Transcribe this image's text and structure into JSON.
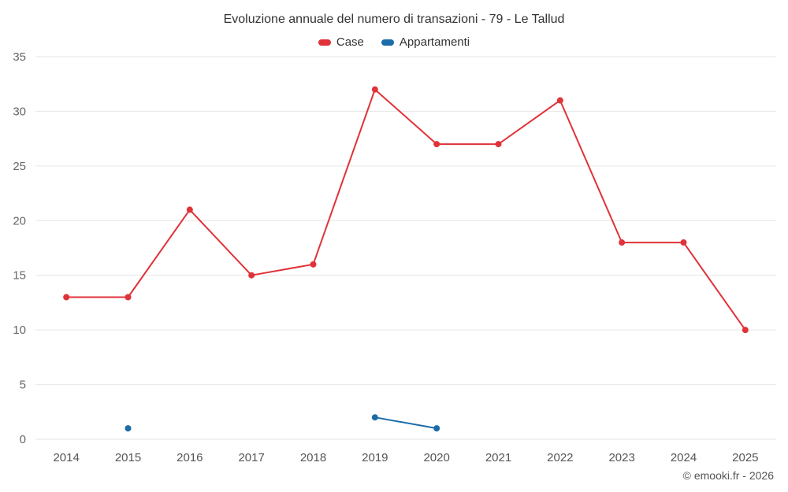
{
  "chart_data": {
    "type": "line",
    "title": "Evoluzione annuale del numero di transazioni - 79 - Le Tallud",
    "categories": [
      "2014",
      "2015",
      "2016",
      "2017",
      "2018",
      "2019",
      "2020",
      "2021",
      "2022",
      "2023",
      "2024",
      "2025"
    ],
    "series": [
      {
        "name": "Case",
        "color": "#e03238",
        "values": [
          13,
          13,
          21,
          15,
          16,
          32,
          27,
          27,
          31,
          18,
          18,
          10
        ]
      },
      {
        "name": "Appartamenti",
        "color": "#1b6ca8",
        "values": [
          null,
          1,
          null,
          null,
          null,
          2,
          1,
          null,
          null,
          null,
          null,
          null
        ]
      }
    ],
    "ylim": [
      0,
      35
    ],
    "ytick_step": 5,
    "grid": true,
    "legend_position": "top",
    "xlabel": "",
    "ylabel": "",
    "colors": {
      "grid": "#e6e6e6",
      "y_tick_label": "#666666",
      "x_tick_label": "#555555",
      "title": "#333333"
    },
    "footer": "© emooki.fr - 2026"
  }
}
